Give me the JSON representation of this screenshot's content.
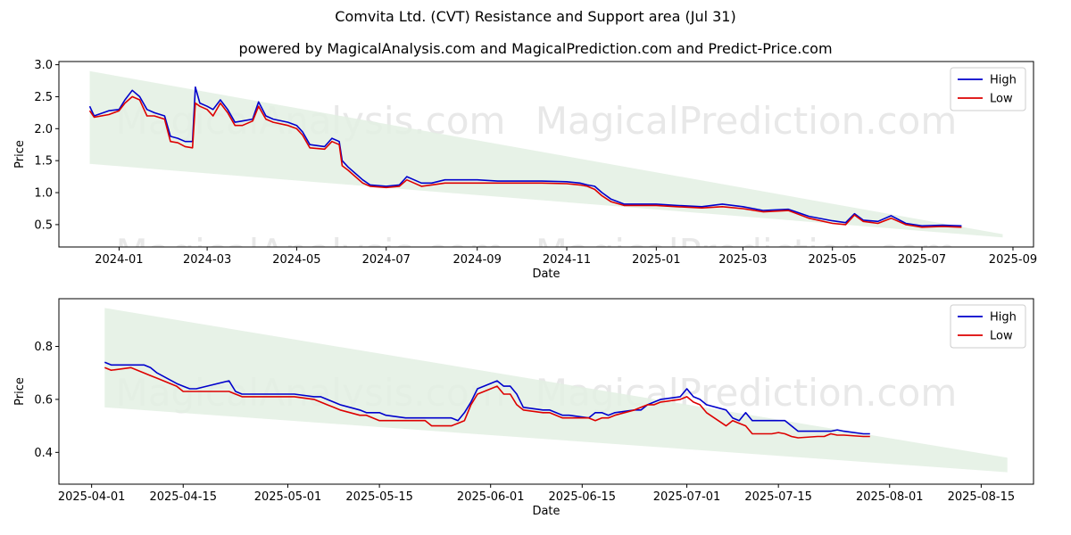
{
  "title": "Comvita Ltd. (CVT) Resistance and Support area (Jul 31)",
  "subtitle": "powered by MagicalAnalysis.com and MagicalPrediction.com and Predict-Price.com",
  "watermarks": [
    "MagicalAnalysis.com",
    "MagicalPrediction.com"
  ],
  "colors": {
    "high": "#0000cc",
    "low": "#dd0000",
    "band": "#e3f0e3"
  },
  "chart_data": [
    {
      "type": "line",
      "xlabel": "Date",
      "ylabel": "Price",
      "xlim": [
        "2023-11-21",
        "2025-09-15"
      ],
      "ylim": [
        0.15,
        3.05
      ],
      "x_ticks": [
        "2024-01",
        "2024-03",
        "2024-05",
        "2024-07",
        "2024-09",
        "2024-11",
        "2025-01",
        "2025-03",
        "2025-05",
        "2025-07",
        "2025-09"
      ],
      "x_tick_dates": [
        "2024-01-01",
        "2024-03-01",
        "2024-05-01",
        "2024-07-01",
        "2024-09-01",
        "2024-11-01",
        "2025-01-01",
        "2025-03-01",
        "2025-05-01",
        "2025-07-01",
        "2025-09-01"
      ],
      "y_ticks": [
        0.5,
        1.0,
        1.5,
        2.0,
        2.5,
        3.0
      ],
      "y_tick_labels": [
        "0.5",
        "1.0",
        "1.5",
        "2.0",
        "2.5",
        "3.0"
      ],
      "legend": "top-right",
      "band": {
        "start": "2023-12-12",
        "end": "2025-08-25",
        "upper": [
          2.9,
          0.35
        ],
        "lower": [
          1.45,
          0.3
        ]
      },
      "series": [
        {
          "name": "High",
          "x": [
            "2023-12-12",
            "2023-12-15",
            "2023-12-25",
            "2024-01-01",
            "2024-01-05",
            "2024-01-10",
            "2024-01-15",
            "2024-01-20",
            "2024-01-25",
            "2024-02-01",
            "2024-02-05",
            "2024-02-10",
            "2024-02-15",
            "2024-02-20",
            "2024-02-22",
            "2024-02-25",
            "2024-03-01",
            "2024-03-05",
            "2024-03-10",
            "2024-03-15",
            "2024-03-20",
            "2024-03-25",
            "2024-04-01",
            "2024-04-05",
            "2024-04-10",
            "2024-04-15",
            "2024-04-25",
            "2024-05-01",
            "2024-05-05",
            "2024-05-10",
            "2024-05-20",
            "2024-05-25",
            "2024-05-30",
            "2024-06-01",
            "2024-06-05",
            "2024-06-10",
            "2024-06-15",
            "2024-06-20",
            "2024-07-01",
            "2024-07-10",
            "2024-07-15",
            "2024-07-20",
            "2024-07-25",
            "2024-08-01",
            "2024-08-10",
            "2024-08-20",
            "2024-09-01",
            "2024-09-15",
            "2024-10-01",
            "2024-10-15",
            "2024-11-01",
            "2024-11-10",
            "2024-11-15",
            "2024-11-20",
            "2024-11-25",
            "2024-12-01",
            "2024-12-10",
            "2024-12-20",
            "2025-01-01",
            "2025-01-15",
            "2025-02-01",
            "2025-02-15",
            "2025-03-01",
            "2025-03-15",
            "2025-04-01",
            "2025-04-15",
            "2025-05-01",
            "2025-05-10",
            "2025-05-16",
            "2025-05-22",
            "2025-06-01",
            "2025-06-10",
            "2025-06-20",
            "2025-07-01",
            "2025-07-15",
            "2025-07-28"
          ],
          "values": [
            2.35,
            2.2,
            2.28,
            2.3,
            2.45,
            2.6,
            2.5,
            2.3,
            2.25,
            2.2,
            1.88,
            1.85,
            1.8,
            1.8,
            2.65,
            2.4,
            2.35,
            2.3,
            2.45,
            2.3,
            2.1,
            2.12,
            2.15,
            2.42,
            2.2,
            2.15,
            2.1,
            2.05,
            1.95,
            1.75,
            1.72,
            1.85,
            1.8,
            1.5,
            1.4,
            1.3,
            1.2,
            1.12,
            1.1,
            1.12,
            1.25,
            1.2,
            1.15,
            1.15,
            1.2,
            1.2,
            1.2,
            1.18,
            1.18,
            1.18,
            1.17,
            1.15,
            1.12,
            1.1,
            1.0,
            0.9,
            0.82,
            0.82,
            0.82,
            0.8,
            0.78,
            0.82,
            0.78,
            0.72,
            0.74,
            0.63,
            0.56,
            0.53,
            0.67,
            0.57,
            0.55,
            0.64,
            0.52,
            0.48,
            0.49,
            0.48
          ]
        },
        {
          "name": "Low",
          "x": [
            "2023-12-12",
            "2023-12-15",
            "2023-12-25",
            "2024-01-01",
            "2024-01-05",
            "2024-01-10",
            "2024-01-15",
            "2024-01-20",
            "2024-01-25",
            "2024-02-01",
            "2024-02-05",
            "2024-02-10",
            "2024-02-15",
            "2024-02-20",
            "2024-02-22",
            "2024-02-25",
            "2024-03-01",
            "2024-03-05",
            "2024-03-10",
            "2024-03-15",
            "2024-03-20",
            "2024-03-25",
            "2024-04-01",
            "2024-04-05",
            "2024-04-10",
            "2024-04-15",
            "2024-04-25",
            "2024-05-01",
            "2024-05-05",
            "2024-05-10",
            "2024-05-20",
            "2024-05-25",
            "2024-05-30",
            "2024-06-01",
            "2024-06-05",
            "2024-06-10",
            "2024-06-15",
            "2024-06-20",
            "2024-07-01",
            "2024-07-10",
            "2024-07-15",
            "2024-07-20",
            "2024-07-25",
            "2024-08-01",
            "2024-08-10",
            "2024-08-20",
            "2024-09-01",
            "2024-09-15",
            "2024-10-01",
            "2024-10-15",
            "2024-11-01",
            "2024-11-10",
            "2024-11-15",
            "2024-11-20",
            "2024-11-25",
            "2024-12-01",
            "2024-12-10",
            "2024-12-20",
            "2025-01-01",
            "2025-01-15",
            "2025-02-01",
            "2025-02-15",
            "2025-03-01",
            "2025-03-15",
            "2025-04-01",
            "2025-04-15",
            "2025-05-01",
            "2025-05-10",
            "2025-05-16",
            "2025-05-22",
            "2025-06-01",
            "2025-06-10",
            "2025-06-20",
            "2025-07-01",
            "2025-07-15",
            "2025-07-28"
          ],
          "values": [
            2.28,
            2.18,
            2.22,
            2.28,
            2.4,
            2.5,
            2.45,
            2.2,
            2.2,
            2.15,
            1.8,
            1.78,
            1.72,
            1.7,
            2.4,
            2.35,
            2.3,
            2.2,
            2.4,
            2.25,
            2.05,
            2.05,
            2.12,
            2.35,
            2.15,
            2.1,
            2.05,
            2.0,
            1.9,
            1.7,
            1.68,
            1.8,
            1.75,
            1.42,
            1.35,
            1.25,
            1.15,
            1.1,
            1.08,
            1.1,
            1.2,
            1.15,
            1.1,
            1.12,
            1.15,
            1.15,
            1.15,
            1.15,
            1.15,
            1.15,
            1.14,
            1.12,
            1.1,
            1.05,
            0.95,
            0.86,
            0.8,
            0.8,
            0.8,
            0.78,
            0.76,
            0.78,
            0.75,
            0.7,
            0.72,
            0.6,
            0.52,
            0.5,
            0.65,
            0.55,
            0.52,
            0.6,
            0.5,
            0.46,
            0.47,
            0.46
          ]
        }
      ]
    },
    {
      "type": "line",
      "xlabel": "Date",
      "ylabel": "Price",
      "xlim": [
        "2025-03-27",
        "2025-08-23"
      ],
      "ylim": [
        0.28,
        0.98
      ],
      "x_ticks": [
        "2025-04-01",
        "2025-04-15",
        "2025-05-01",
        "2025-05-15",
        "2025-06-01",
        "2025-06-15",
        "2025-07-01",
        "2025-07-15",
        "2025-08-01",
        "2025-08-15"
      ],
      "x_tick_dates": [
        "2025-04-01",
        "2025-04-15",
        "2025-05-01",
        "2025-05-15",
        "2025-06-01",
        "2025-06-15",
        "2025-07-01",
        "2025-07-15",
        "2025-08-01",
        "2025-08-15"
      ],
      "y_ticks": [
        0.4,
        0.6,
        0.8
      ],
      "y_tick_labels": [
        "0.4",
        "0.6",
        "0.8"
      ],
      "legend": "top-right",
      "band": {
        "start": "2025-04-03",
        "end": "2025-08-19",
        "upper": [
          0.945,
          0.38
        ],
        "lower": [
          0.57,
          0.325
        ]
      },
      "series": [
        {
          "name": "High",
          "x": [
            "2025-04-03",
            "2025-04-04",
            "2025-04-07",
            "2025-04-09",
            "2025-04-10",
            "2025-04-11",
            "2025-04-14",
            "2025-04-15",
            "2025-04-16",
            "2025-04-17",
            "2025-04-22",
            "2025-04-23",
            "2025-04-24",
            "2025-04-28",
            "2025-04-29",
            "2025-04-30",
            "2025-05-02",
            "2025-05-05",
            "2025-05-06",
            "2025-05-07",
            "2025-05-08",
            "2025-05-09",
            "2025-05-12",
            "2025-05-13",
            "2025-05-14",
            "2025-05-15",
            "2025-05-16",
            "2025-05-19",
            "2025-05-20",
            "2025-05-21",
            "2025-05-22",
            "2025-05-23",
            "2025-05-26",
            "2025-05-27",
            "2025-05-28",
            "2025-05-29",
            "2025-05-30",
            "2025-06-02",
            "2025-06-03",
            "2025-06-04",
            "2025-06-05",
            "2025-06-06",
            "2025-06-09",
            "2025-06-10",
            "2025-06-11",
            "2025-06-12",
            "2025-06-13",
            "2025-06-16",
            "2025-06-17",
            "2025-06-18",
            "2025-06-19",
            "2025-06-20",
            "2025-06-23",
            "2025-06-24",
            "2025-06-25",
            "2025-06-26",
            "2025-06-27",
            "2025-06-30",
            "2025-07-01",
            "2025-07-02",
            "2025-07-03",
            "2025-07-04",
            "2025-07-07",
            "2025-07-08",
            "2025-07-09",
            "2025-07-10",
            "2025-07-11",
            "2025-07-14",
            "2025-07-15",
            "2025-07-16",
            "2025-07-17",
            "2025-07-18",
            "2025-07-21",
            "2025-07-22",
            "2025-07-23",
            "2025-07-24",
            "2025-07-25",
            "2025-07-28",
            "2025-07-29"
          ],
          "values": [
            0.74,
            0.73,
            0.73,
            0.73,
            0.72,
            0.7,
            0.66,
            0.65,
            0.64,
            0.64,
            0.67,
            0.63,
            0.62,
            0.62,
            0.62,
            0.62,
            0.62,
            0.61,
            0.61,
            0.6,
            0.59,
            0.58,
            0.56,
            0.55,
            0.55,
            0.55,
            0.54,
            0.53,
            0.53,
            0.53,
            0.53,
            0.53,
            0.53,
            0.52,
            0.55,
            0.59,
            0.64,
            0.67,
            0.65,
            0.65,
            0.62,
            0.57,
            0.56,
            0.56,
            0.55,
            0.54,
            0.54,
            0.53,
            0.55,
            0.55,
            0.54,
            0.55,
            0.56,
            0.56,
            0.58,
            0.59,
            0.6,
            0.61,
            0.64,
            0.61,
            0.6,
            0.58,
            0.56,
            0.53,
            0.52,
            0.55,
            0.52,
            0.52,
            0.52,
            0.52,
            0.5,
            0.48,
            0.48,
            0.48,
            0.48,
            0.485,
            0.48,
            0.47,
            0.47
          ]
        },
        {
          "name": "Low",
          "x": [
            "2025-04-03",
            "2025-04-04",
            "2025-04-07",
            "2025-04-09",
            "2025-04-10",
            "2025-04-11",
            "2025-04-14",
            "2025-04-15",
            "2025-04-16",
            "2025-04-17",
            "2025-04-22",
            "2025-04-23",
            "2025-04-24",
            "2025-04-28",
            "2025-04-29",
            "2025-04-30",
            "2025-05-02",
            "2025-05-05",
            "2025-05-06",
            "2025-05-07",
            "2025-05-08",
            "2025-05-09",
            "2025-05-12",
            "2025-05-13",
            "2025-05-14",
            "2025-05-15",
            "2025-05-16",
            "2025-05-19",
            "2025-05-20",
            "2025-05-21",
            "2025-05-22",
            "2025-05-23",
            "2025-05-26",
            "2025-05-27",
            "2025-05-28",
            "2025-05-29",
            "2025-05-30",
            "2025-06-02",
            "2025-06-03",
            "2025-06-04",
            "2025-06-05",
            "2025-06-06",
            "2025-06-09",
            "2025-06-10",
            "2025-06-11",
            "2025-06-12",
            "2025-06-13",
            "2025-06-16",
            "2025-06-17",
            "2025-06-18",
            "2025-06-19",
            "2025-06-20",
            "2025-06-23",
            "2025-06-24",
            "2025-06-25",
            "2025-06-26",
            "2025-06-27",
            "2025-06-30",
            "2025-07-01",
            "2025-07-02",
            "2025-07-03",
            "2025-07-04",
            "2025-07-07",
            "2025-07-08",
            "2025-07-09",
            "2025-07-10",
            "2025-07-11",
            "2025-07-14",
            "2025-07-15",
            "2025-07-16",
            "2025-07-17",
            "2025-07-18",
            "2025-07-21",
            "2025-07-22",
            "2025-07-23",
            "2025-07-24",
            "2025-07-25",
            "2025-07-28",
            "2025-07-29"
          ],
          "values": [
            0.72,
            0.71,
            0.72,
            0.7,
            0.69,
            0.68,
            0.65,
            0.63,
            0.63,
            0.63,
            0.63,
            0.62,
            0.61,
            0.61,
            0.61,
            0.61,
            0.61,
            0.6,
            0.59,
            0.58,
            0.57,
            0.56,
            0.54,
            0.54,
            0.53,
            0.52,
            0.52,
            0.52,
            0.52,
            0.52,
            0.52,
            0.5,
            0.5,
            0.51,
            0.52,
            0.58,
            0.62,
            0.65,
            0.62,
            0.62,
            0.58,
            0.56,
            0.55,
            0.55,
            0.54,
            0.53,
            0.53,
            0.53,
            0.52,
            0.53,
            0.53,
            0.54,
            0.56,
            0.57,
            0.58,
            0.58,
            0.59,
            0.6,
            0.61,
            0.59,
            0.58,
            0.55,
            0.5,
            0.52,
            0.51,
            0.5,
            0.47,
            0.47,
            0.475,
            0.47,
            0.46,
            0.455,
            0.46,
            0.46,
            0.47,
            0.465,
            0.465,
            0.46,
            0.46
          ]
        }
      ]
    }
  ]
}
